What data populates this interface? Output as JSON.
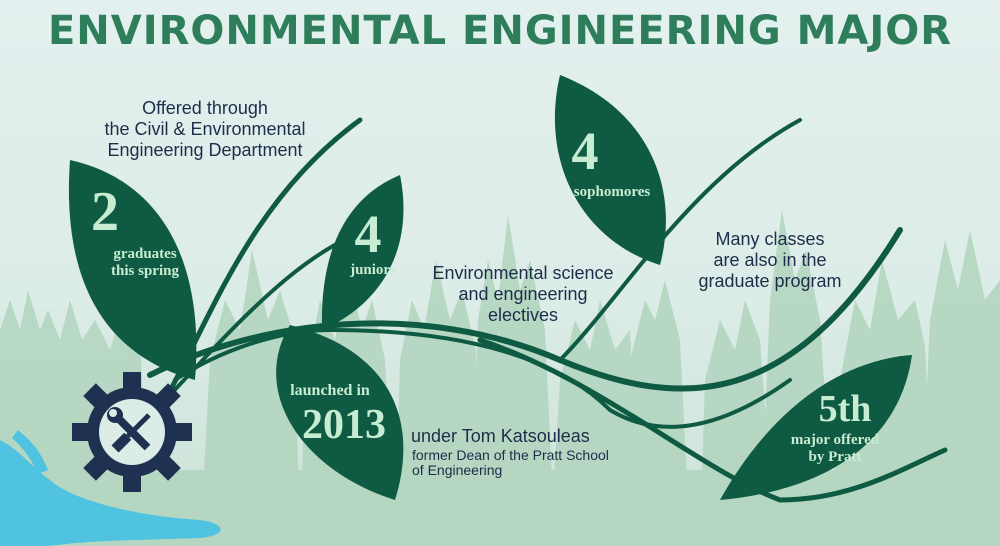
{
  "title": "ENVIRONMENTAL ENGINEERING MAJOR",
  "notes": {
    "offered": [
      "Offered through",
      "the Civil & Environmental",
      "Engineering Department"
    ],
    "electives": [
      "Environmental science",
      "and engineering",
      "electives"
    ],
    "graduate": [
      "Many classes",
      "are also in the",
      "graduate program"
    ],
    "katsouleas_name": "under Tom Katsouleas",
    "katsouleas_role": [
      "former Dean of the Pratt School",
      "of Engineering"
    ]
  },
  "leaves": {
    "graduates": {
      "value": "2",
      "label": [
        "graduates",
        "this spring"
      ]
    },
    "juniors": {
      "value": "4",
      "label": [
        "juniors"
      ]
    },
    "sophomores": {
      "value": "4",
      "label": [
        "sophomores"
      ]
    },
    "launched": {
      "prefix": "launched in",
      "value": "2013"
    },
    "fifth": {
      "value": "5th",
      "label": [
        "major offered",
        "by Pratt"
      ]
    }
  },
  "colors": {
    "title": "#2e7d5b",
    "leaf": "#0f5a42",
    "stem": "#0f5a42",
    "leaf_text": "#c8ecd2",
    "note_text": "#1e2d4a",
    "gear": "#1f3150",
    "hand": "#4fc3e0",
    "trees": "#a9cfb8"
  },
  "icons": [
    "gear-icon",
    "wrench-icon",
    "screwdriver-icon",
    "hand-icon",
    "tree-silhouettes"
  ]
}
